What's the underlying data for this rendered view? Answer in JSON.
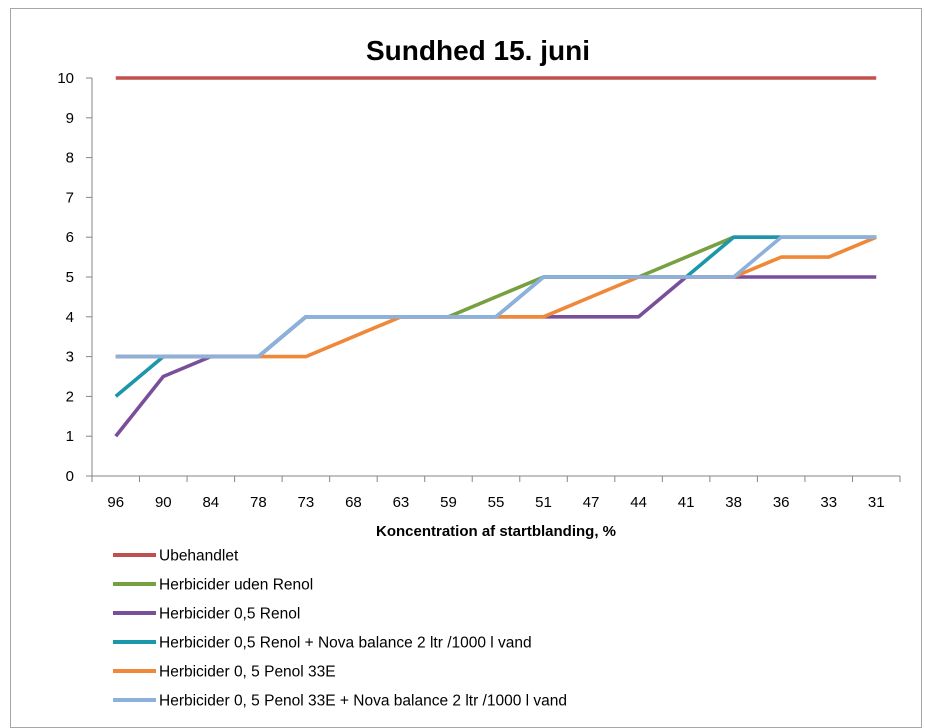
{
  "chart_data": {
    "type": "line",
    "title": "Sundhed 15. juni",
    "xlabel": "Koncentration af startblanding, %",
    "ylabel": "",
    "ylim": [
      0,
      10
    ],
    "yticks": [
      0,
      1,
      2,
      3,
      4,
      5,
      6,
      7,
      8,
      9,
      10
    ],
    "categories": [
      "96",
      "90",
      "84",
      "78",
      "73",
      "68",
      "63",
      "59",
      "55",
      "51",
      "47",
      "44",
      "41",
      "38",
      "36",
      "33",
      "31"
    ],
    "grid": false,
    "legend_position": "bottom",
    "series": [
      {
        "name": "Ubehandlet",
        "color": "#c0504d",
        "values": [
          10,
          10,
          10,
          10,
          10,
          10,
          10,
          10,
          10,
          10,
          10,
          10,
          10,
          10,
          10,
          10,
          10
        ]
      },
      {
        "name": "Herbicider uden Renol",
        "color": "#77a040",
        "values": [
          3,
          3,
          3,
          3,
          4,
          4,
          4,
          4,
          4.5,
          5,
          5,
          5,
          5.5,
          6,
          6,
          6,
          6
        ]
      },
      {
        "name": "Herbicider 0,5 Renol",
        "color": "#7a4f9a",
        "values": [
          1,
          2.5,
          3,
          3,
          4,
          4,
          4,
          4,
          4,
          4,
          4,
          4,
          5,
          5,
          5,
          5,
          5
        ]
      },
      {
        "name": "Herbicider 0,5 Renol  + Nova balance 2 ltr /1000 l vand",
        "color": "#1b96aa",
        "values": [
          2,
          3,
          3,
          3,
          4,
          4,
          4,
          4,
          4,
          5,
          5,
          5,
          5,
          6,
          6,
          6,
          6
        ]
      },
      {
        "name": "Herbicider 0, 5 Penol 33E",
        "color": "#f0883a",
        "values": [
          3,
          3,
          3,
          3,
          3,
          3.5,
          4,
          4,
          4,
          4,
          4.5,
          5,
          5,
          5,
          5.5,
          5.5,
          6
        ]
      },
      {
        "name": "Herbicider 0, 5 Penol 33E  + Nova balance 2 ltr /1000 l vand",
        "color": "#8db0dc",
        "values": [
          3,
          3,
          3,
          3,
          4,
          4,
          4,
          4,
          4,
          5,
          5,
          5,
          5,
          5,
          6,
          6,
          6
        ]
      }
    ]
  }
}
